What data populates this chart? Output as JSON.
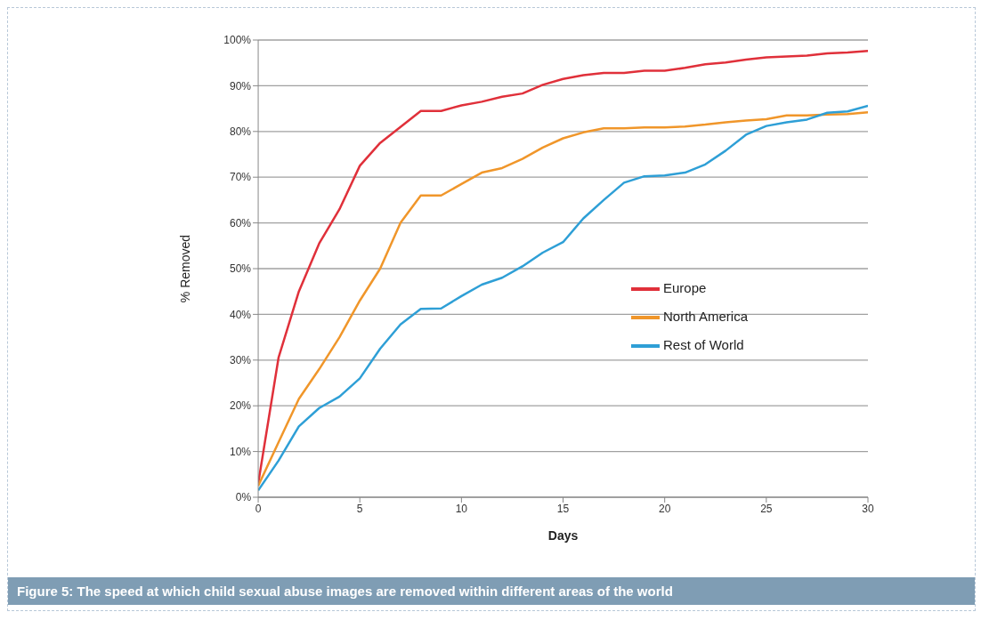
{
  "chart_data": {
    "type": "line",
    "title": "Figure 5: The speed at which child sexual abuse images are removed within different areas of the world",
    "xlabel": "Days",
    "ylabel": "% Removed",
    "x": [
      0,
      1,
      2,
      3,
      4,
      5,
      6,
      7,
      8,
      9,
      10,
      11,
      12,
      13,
      14,
      15,
      16,
      17,
      18,
      19,
      20,
      21,
      22,
      23,
      24,
      25,
      26,
      27,
      28,
      29,
      30
    ],
    "series": [
      {
        "name": "Europe",
        "color": "#e0303a",
        "values": [
          3,
          30.5,
          45,
          55.5,
          63,
          72.5,
          77.5,
          81,
          84.5,
          84.5,
          85.7,
          86.5,
          87.6,
          88.3,
          90.2,
          91.5,
          92.3,
          92.8,
          92.8,
          93.3,
          93.3,
          93.9,
          94.7,
          95.1,
          95.7,
          96.2,
          96.4,
          96.6,
          97.1,
          97.3,
          97.6
        ]
      },
      {
        "name": "North America",
        "color": "#f0962a",
        "values": [
          2.5,
          12,
          21.5,
          28,
          35,
          43,
          50,
          60,
          66,
          66,
          68.5,
          71,
          72,
          74,
          76.5,
          78.5,
          79.8,
          80.7,
          80.7,
          80.9,
          80.9,
          81.1,
          81.5,
          82,
          82.4,
          82.7,
          83.5,
          83.5,
          83.7,
          83.8,
          84.2
        ]
      },
      {
        "name": "Rest of World",
        "color": "#2e9fd6",
        "values": [
          1.5,
          8,
          15.5,
          19.5,
          22,
          26,
          32.5,
          37.8,
          41.2,
          41.3,
          44,
          46.5,
          48,
          50.5,
          53.5,
          55.8,
          61,
          65,
          68.8,
          70.2,
          70.4,
          71,
          72.8,
          75.8,
          79.3,
          81.2,
          82,
          82.6,
          84.1,
          84.4,
          85.6
        ]
      }
    ],
    "xlim": [
      0,
      30
    ],
    "xticks": [
      0,
      5,
      10,
      15,
      20,
      25,
      30
    ],
    "ylim": [
      0,
      100
    ],
    "yticks": [
      {
        "value": 0,
        "label": "0%"
      },
      {
        "value": 10,
        "label": "10%"
      },
      {
        "value": 20,
        "label": "20%"
      },
      {
        "value": 30,
        "label": "30%"
      },
      {
        "value": 40,
        "label": "40%"
      },
      {
        "value": 50,
        "label": "50%"
      },
      {
        "value": 60,
        "label": "60%"
      },
      {
        "value": 70,
        "label": "70%"
      },
      {
        "value": 80,
        "label": "80%"
      },
      {
        "value": 90,
        "label": "90%"
      },
      {
        "value": 100,
        "label": "100%"
      }
    ],
    "grid": "y",
    "legend": "right",
    "marker": "none",
    "line_style": "solid"
  }
}
